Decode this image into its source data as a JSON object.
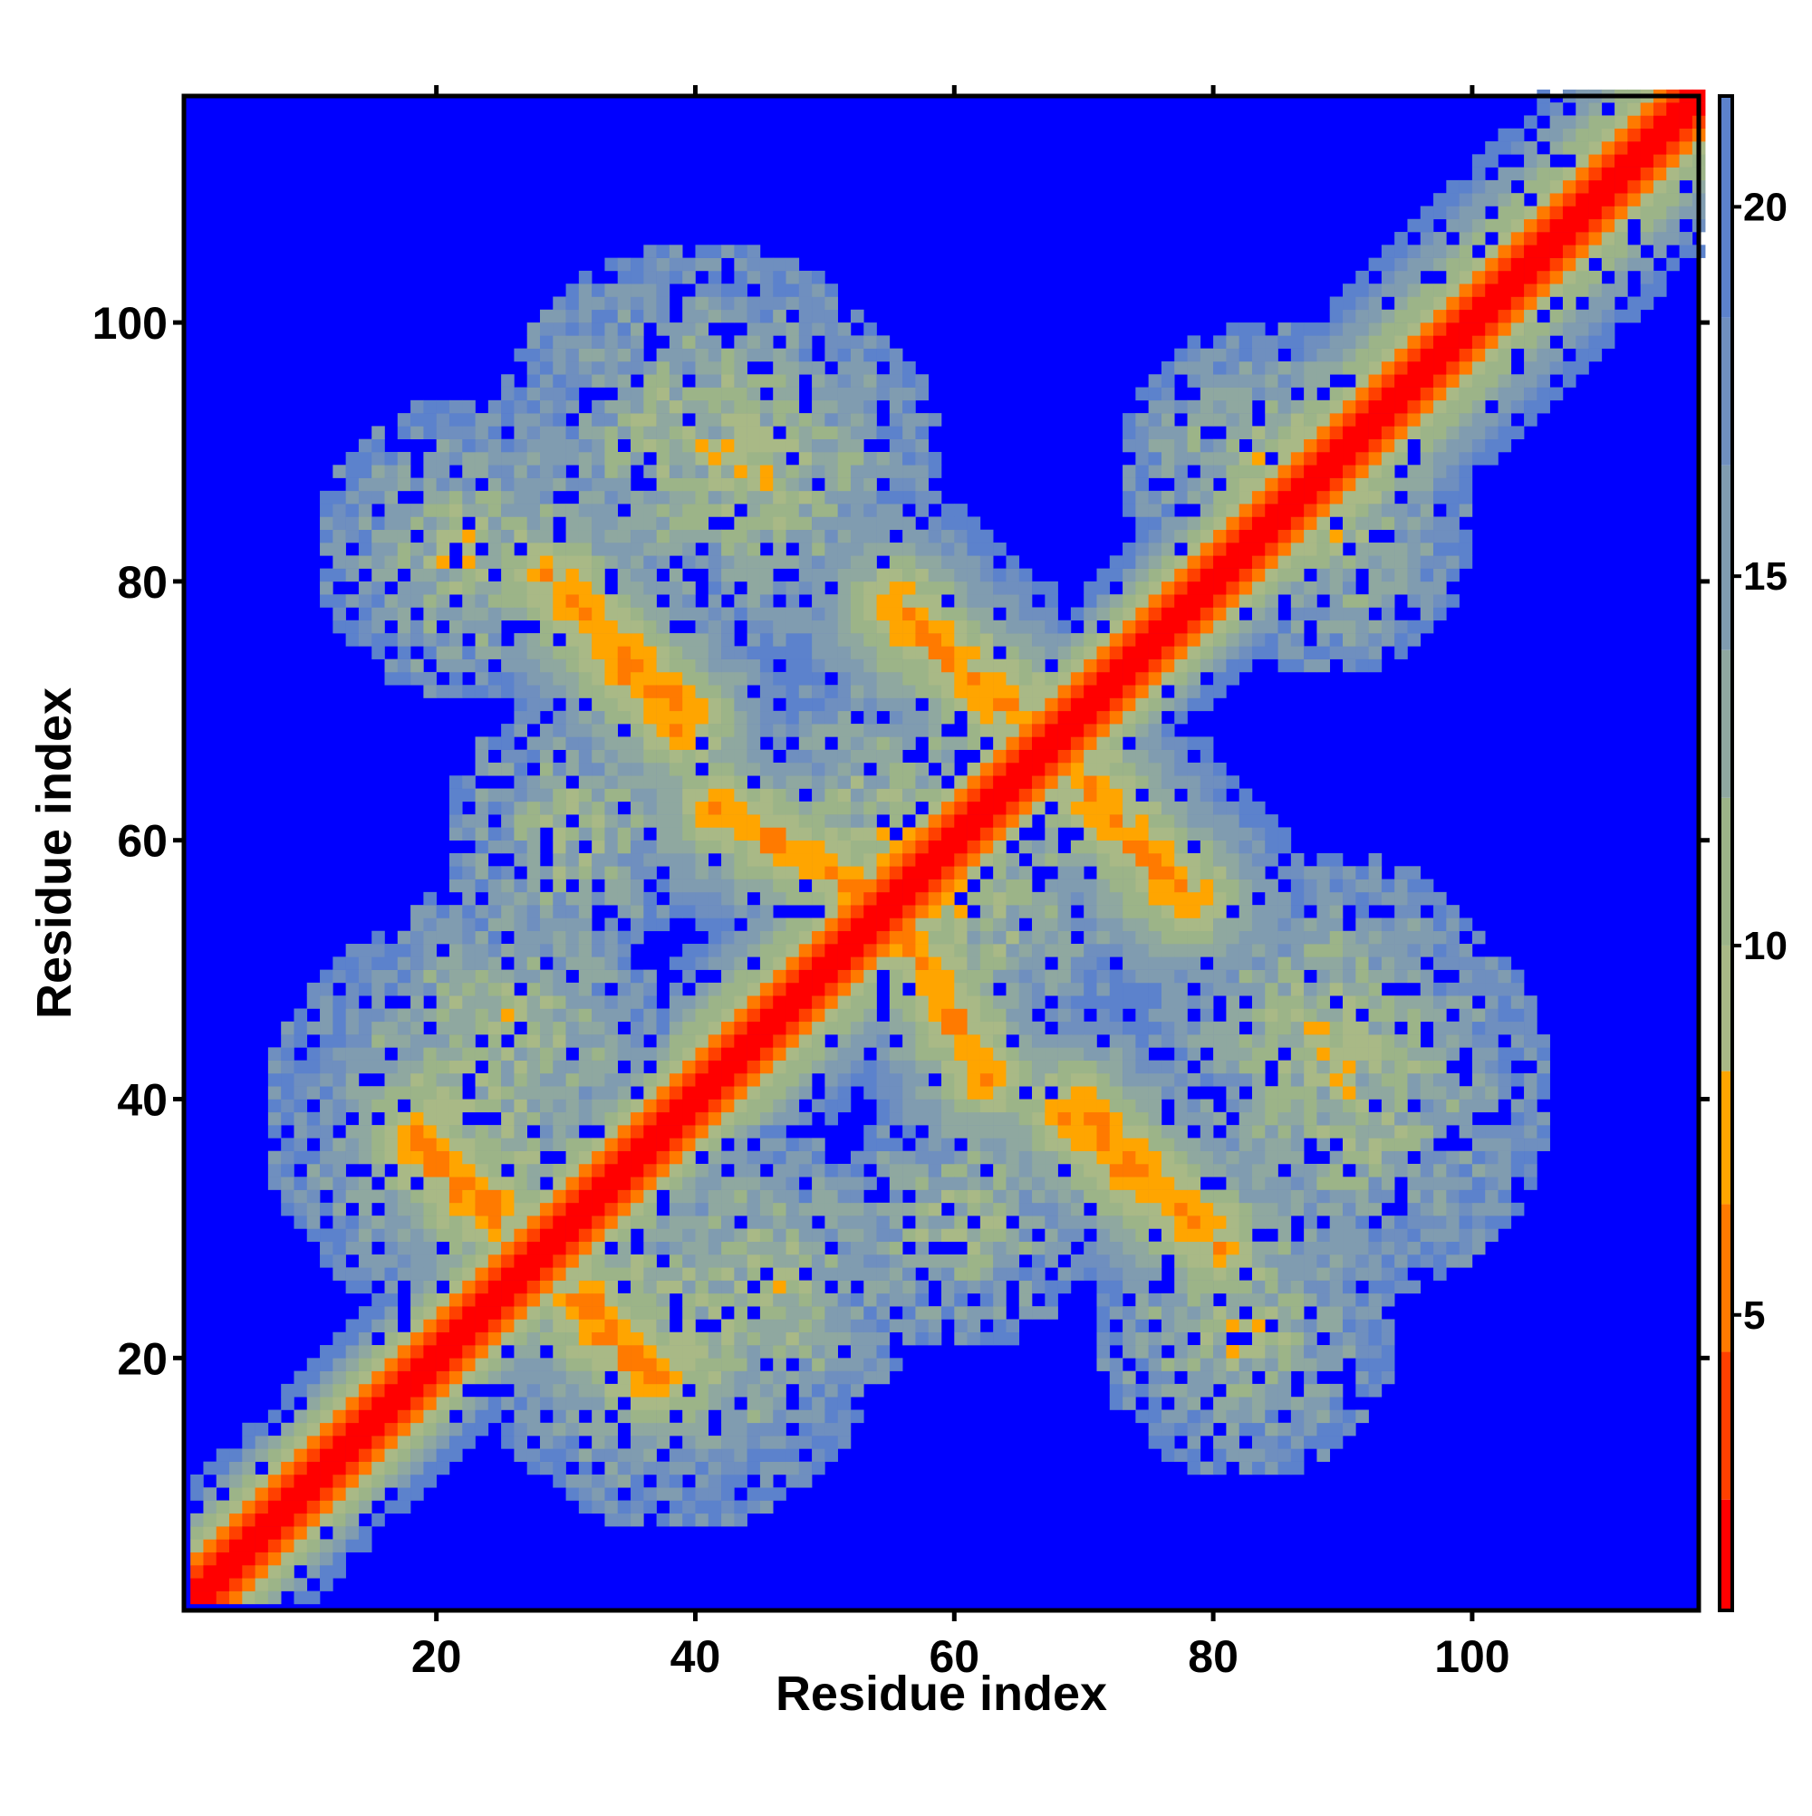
{
  "chart_data": {
    "type": "heatmap",
    "title": "",
    "xlabel": "Residue index",
    "ylabel": "Residue index",
    "xlim": [
      1,
      117
    ],
    "ylim": [
      1,
      117
    ],
    "x_ticks": [
      20,
      40,
      60,
      80,
      100
    ],
    "y_ticks": [
      20,
      40,
      60,
      80,
      100
    ],
    "grid": false,
    "colorbar": {
      "position": "right",
      "range": [
        1,
        21.5
      ],
      "ticks": [
        5,
        10,
        15,
        20
      ],
      "out_of_range_color": "#0000ff"
    },
    "color_scale": [
      {
        "max": 2.5,
        "color": "#ff0000"
      },
      {
        "max": 4.5,
        "color": "#ff4000"
      },
      {
        "max": 6.5,
        "color": "#ff7a00"
      },
      {
        "max": 8.3,
        "color": "#ffa500"
      },
      {
        "max": 10.0,
        "color": "#a9b986"
      },
      {
        "max": 12.0,
        "color": "#9cb488"
      },
      {
        "max": 14.0,
        "color": "#8fa8a0"
      },
      {
        "max": 16.5,
        "color": "#809cb0"
      },
      {
        "max": 18.5,
        "color": "#6f8fbf"
      },
      {
        "max": 21.5,
        "color": "#5c82cc"
      }
    ],
    "contact_features": [
      {
        "kind": "diagonal",
        "from": 1,
        "to": 117,
        "note": "self-distance band"
      },
      {
        "kind": "helix_band",
        "x_range": [
          80,
          117
        ],
        "y_range": [
          80,
          117
        ]
      },
      {
        "kind": "helix_band",
        "x_range": [
          38,
          62
        ],
        "y_range": [
          38,
          62
        ]
      },
      {
        "kind": "antiparallel",
        "x": 18,
        "y": 36,
        "x2": 24,
        "y2": 30
      },
      {
        "kind": "antiparallel",
        "x": 31,
        "y": 24,
        "x2": 37,
        "y2": 18
      },
      {
        "kind": "antiparallel",
        "x": 28,
        "y": 80,
        "x2": 39,
        "y2": 69
      },
      {
        "kind": "antiparallel",
        "x": 55,
        "y": 78,
        "x2": 63,
        "y2": 70
      },
      {
        "kind": "antiparallel",
        "x": 70,
        "y": 64,
        "x2": 77,
        "y2": 55
      },
      {
        "kind": "antiparallel",
        "x": 68,
        "y": 38,
        "x2": 79,
        "y2": 29
      },
      {
        "kind": "antiparallel",
        "x": 56,
        "y": 52,
        "x2": 62,
        "y2": 41
      }
    ]
  }
}
